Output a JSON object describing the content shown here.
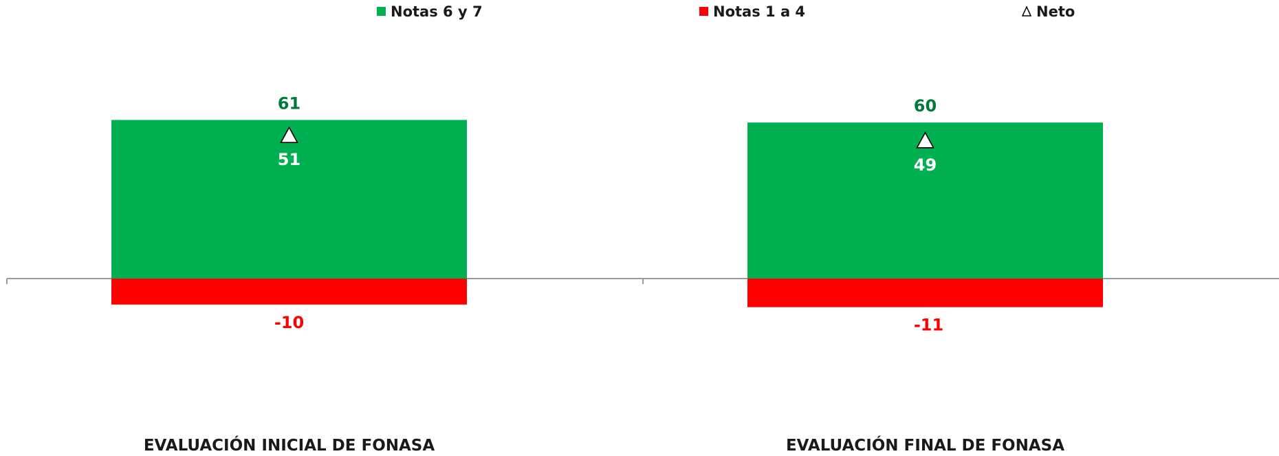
{
  "colors": {
    "positive": "#00B050",
    "negative": "#FF0000",
    "positive_label": "#007A3A",
    "net_label": "#FFFFFF",
    "axis": "#9A9A9A",
    "text": "#1A1A1A"
  },
  "legend_items": [
    {
      "name": "Notas 6 y 7",
      "marker": "square",
      "color": "#00B050"
    },
    {
      "name": "Notas 1 a 4",
      "marker": "square",
      "color": "#FF0000"
    },
    {
      "name": "Neto",
      "marker": "triangle-outline",
      "color": "#FFFFFF"
    }
  ],
  "chart_data": {
    "type": "bar",
    "stacked": true,
    "title": "",
    "xlabel": "",
    "ylabel": "",
    "legend_position": "top",
    "grid": false,
    "ylim": [
      -40,
      90
    ],
    "categories": [
      "EVALUACIÓN INICIAL DE FONASA",
      "EVALUACIÓN FINAL DE FONASA"
    ],
    "series": [
      {
        "name": "Notas 6 y 7",
        "kind": "bar",
        "color": "#00B050",
        "values": [
          61,
          60
        ],
        "labels": [
          "61",
          "60"
        ]
      },
      {
        "name": "Notas 1 a 4",
        "kind": "bar",
        "color": "#FF0000",
        "values": [
          -10,
          -11
        ],
        "labels": [
          "-10",
          "-11"
        ]
      },
      {
        "name": "Neto",
        "kind": "marker",
        "marker": "triangle",
        "color": "#FFFFFF",
        "values": [
          51,
          49
        ],
        "labels": [
          "51",
          "49"
        ]
      }
    ]
  }
}
